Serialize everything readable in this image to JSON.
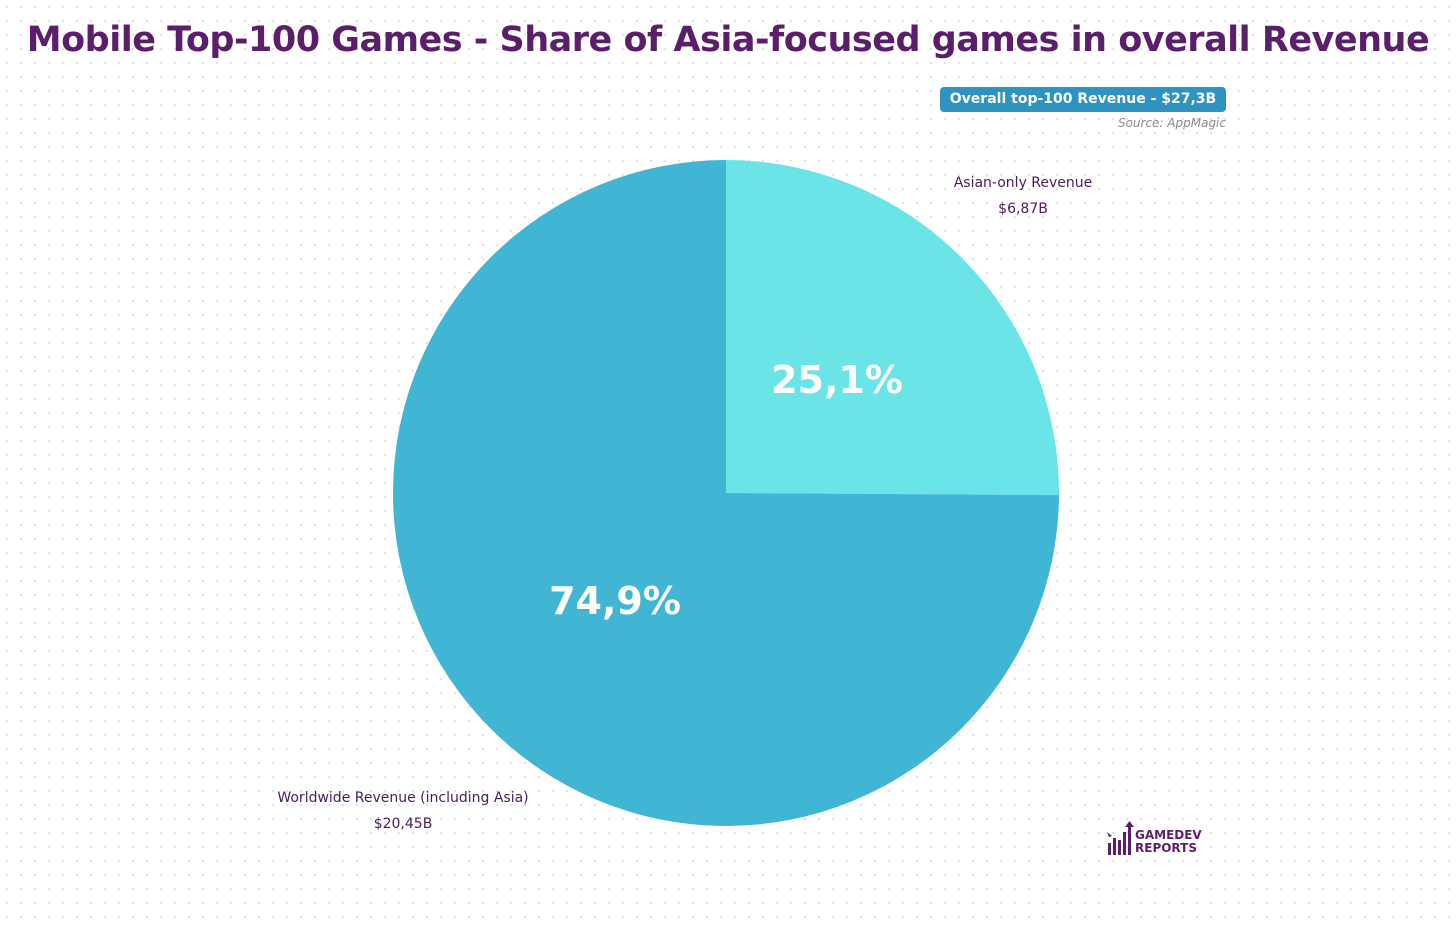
{
  "chart_data": {
    "type": "pie",
    "title": "Mobile Top-100 Games - Share of Asia-focused games in overall Revenue",
    "total_label": "Overall top-100 Revenue - $27,3B",
    "source": "Source: AppMagic",
    "slices": [
      {
        "name": "Asian-only Revenue",
        "amount": "$6,87B",
        "share": 25.1,
        "percent_label": "25,1%",
        "color": "#6ae4e6"
      },
      {
        "name": "Worldwide Revenue (including Asia)",
        "amount": "$20,45B",
        "share": 74.9,
        "percent_label": "74,9%",
        "color": "#41b5d4"
      }
    ],
    "start_angle": "12 o'clock, clockwise",
    "grid": false,
    "legend": "none (direct labels)"
  },
  "branding": {
    "line1": "GAMEDEV",
    "line2": "REPORTS",
    "color": "#5b1e6b"
  }
}
